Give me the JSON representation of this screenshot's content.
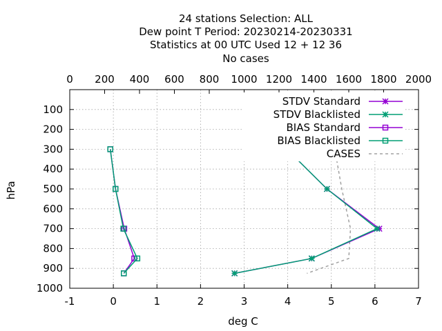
{
  "chart_data": {
    "type": "line",
    "title_lines": [
      "24 stations Selection: ALL",
      "Dew point T  Period: 20230214-20230331",
      "Statistics at 00 UTC  Used  12 + 12 36",
      "No cases"
    ],
    "xlabel": "deg C",
    "ylabel": "hPa",
    "xlim": [
      -1,
      7
    ],
    "ylim": [
      1000,
      0
    ],
    "x2lim": [
      0,
      2000
    ],
    "x_ticks": [
      "-1",
      "0",
      "1",
      "2",
      "3",
      "4",
      "5",
      "6",
      "7"
    ],
    "x2_ticks": [
      "0",
      "200",
      "400",
      "600",
      "800",
      "1000",
      "1200",
      "1400",
      "1600",
      "1800",
      "2000"
    ],
    "y_ticks": [
      "100",
      "200",
      "300",
      "400",
      "500",
      "600",
      "700",
      "800",
      "900",
      "1000"
    ],
    "grid": true,
    "legend_position": "top-right",
    "colors": {
      "standard": "#9400d3",
      "blacklisted": "#009e73",
      "cases": "#a0a0a0"
    },
    "series": [
      {
        "name": "STDV Standard",
        "color": "#9400d3",
        "marker": "star",
        "points": [
          [
            3.98,
            300
          ],
          [
            4.9,
            500
          ],
          [
            6.1,
            700
          ],
          [
            4.55,
            850
          ],
          [
            2.78,
            925
          ]
        ]
      },
      {
        "name": "STDV Blacklisted",
        "color": "#009e73",
        "marker": "star",
        "points": [
          [
            3.98,
            300
          ],
          [
            4.9,
            500
          ],
          [
            6.05,
            700
          ],
          [
            4.55,
            850
          ],
          [
            2.78,
            925
          ]
        ]
      },
      {
        "name": "BIAS Standard",
        "color": "#9400d3",
        "marker": "square",
        "points": [
          [
            -0.07,
            300
          ],
          [
            0.05,
            500
          ],
          [
            0.25,
            700
          ],
          [
            0.48,
            850
          ],
          [
            0.24,
            925
          ]
        ]
      },
      {
        "name": "BIAS Blacklisted",
        "color": "#009e73",
        "marker": "square",
        "points": [
          [
            -0.07,
            300
          ],
          [
            0.05,
            500
          ],
          [
            0.23,
            700
          ],
          [
            0.55,
            850
          ],
          [
            0.24,
            925
          ]
        ]
      },
      {
        "name": "CASES",
        "color": "#a0a0a0",
        "dashed": true,
        "axis": "top",
        "points": [
          [
            1520,
            300
          ],
          [
            1560,
            500
          ],
          [
            1610,
            700
          ],
          [
            1600,
            850
          ],
          [
            1360,
            925
          ]
        ]
      }
    ]
  }
}
